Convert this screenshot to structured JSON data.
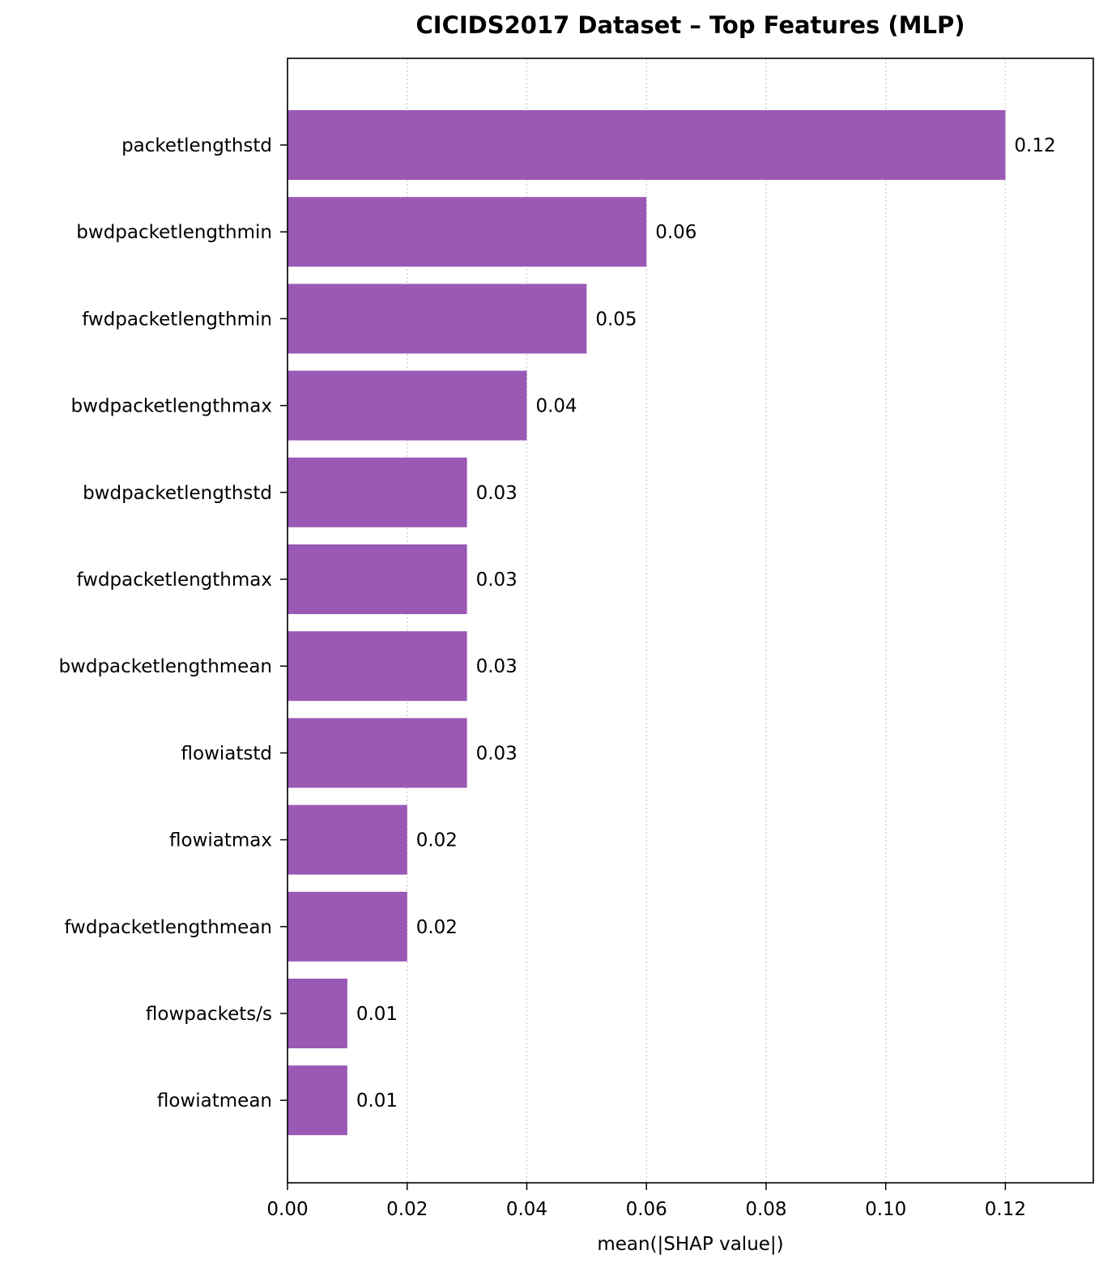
{
  "chart_data": {
    "type": "bar",
    "orientation": "horizontal",
    "title": "CICIDS2017 Dataset – Top Features (MLP)",
    "xlabel": "mean(|SHAP value|)",
    "ylabel": "",
    "xlim": [
      0,
      0.1347
    ],
    "xticks": [
      "0.00",
      "0.02",
      "0.04",
      "0.06",
      "0.08",
      "0.10",
      "0.12"
    ],
    "grid": "x-dotted",
    "bar_color": "#9b59b6",
    "categories": [
      "packetlengthstd",
      "bwdpacketlengthmin",
      "fwdpacketlengthmin",
      "bwdpacketlengthmax",
      "bwdpacketlengthstd",
      "fwdpacketlengthmax",
      "bwdpacketlengthmean",
      "flowiatstd",
      "flowiatmax",
      "fwdpacketlengthmean",
      "flowpackets/s",
      "flowiatmean"
    ],
    "values": [
      0.12,
      0.06,
      0.05,
      0.04,
      0.03,
      0.03,
      0.03,
      0.03,
      0.02,
      0.02,
      0.01,
      0.01
    ],
    "value_labels": [
      "0.12",
      "0.06",
      "0.05",
      "0.04",
      "0.03",
      "0.03",
      "0.03",
      "0.03",
      "0.02",
      "0.02",
      "0.01",
      "0.01"
    ]
  }
}
